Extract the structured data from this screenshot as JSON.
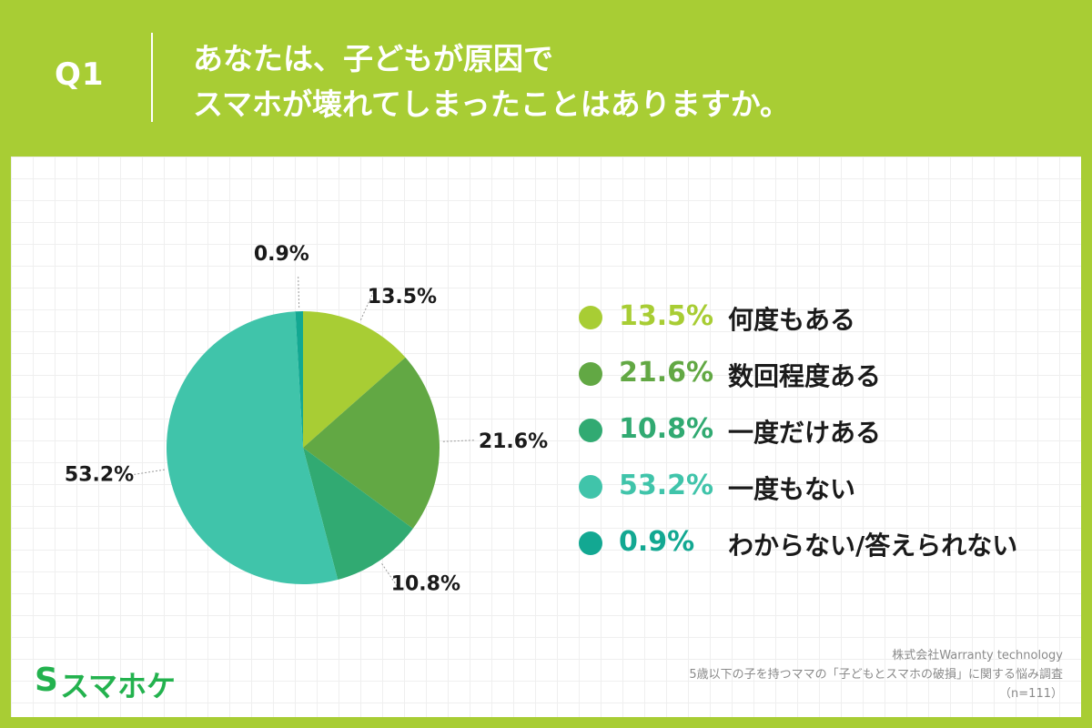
{
  "header": {
    "question_number": "Q1",
    "title_line1": "あなたは、子どもが原因で",
    "title_line2": "スマホが壊れてしまったことはありますか。"
  },
  "chart_data": {
    "type": "pie",
    "categories": [
      "何度もある",
      "数回程度ある",
      "一度だけある",
      "一度もない",
      "わからない/答えられない"
    ],
    "values": [
      13.5,
      21.6,
      10.8,
      53.2,
      0.9
    ],
    "value_labels": [
      "13.5%",
      "21.6%",
      "10.8%",
      "53.2%",
      "0.9%"
    ],
    "colors": [
      "#a8cd34",
      "#62a844",
      "#31aa72",
      "#40c4aa",
      "#13a892"
    ],
    "start_angle_deg": 0,
    "direction": "clockwise"
  },
  "legend": {
    "items": [
      {
        "value": "13.5%",
        "label": "何度もある",
        "color": "#a8cd34"
      },
      {
        "value": "21.6%",
        "label": "数回程度ある",
        "color": "#62a844"
      },
      {
        "value": "10.8%",
        "label": "一度だけある",
        "color": "#31aa72"
      },
      {
        "value": "53.2%",
        "label": "一度もない",
        "color": "#40c4aa"
      },
      {
        "value": "0.9%",
        "label": "わからない/答えられない",
        "color": "#13a892"
      }
    ]
  },
  "brand": {
    "name": "スマホケ",
    "color": "#23b24e"
  },
  "source": {
    "company": "株式会社Warranty technology",
    "survey": "5歳以下の子を持つママの「子どもとスマホの破損」に関する悩み調査",
    "sample": "（n=111）"
  }
}
